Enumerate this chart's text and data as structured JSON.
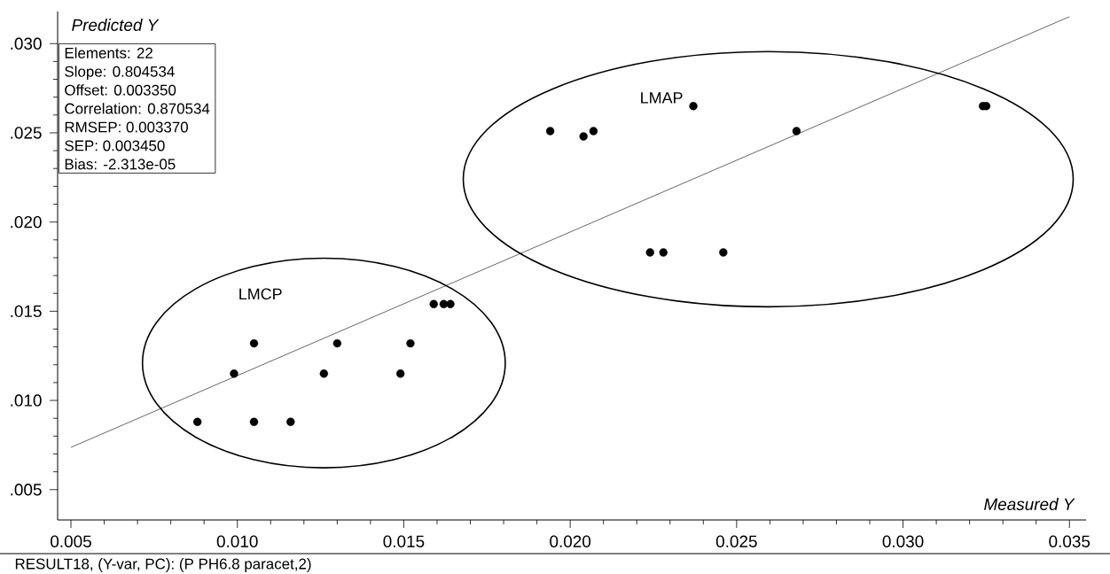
{
  "chart_data": {
    "type": "scatter",
    "xlabel": "Measured Y",
    "ylabel": "Predicted Y",
    "series": [
      {
        "name": "LMCP",
        "color": "#000000",
        "x": [
          0.0088,
          0.0105,
          0.0116,
          0.0099,
          0.0105,
          0.013,
          0.0126,
          0.0152,
          0.0149,
          0.0159,
          0.0162,
          0.0164
        ],
        "values": [
          0.0088,
          0.0088,
          0.0088,
          0.0115,
          0.0132,
          0.0132,
          0.0115,
          0.0132,
          0.0115,
          0.0154,
          0.0154,
          0.0154
        ]
      },
      {
        "name": "LMAP",
        "color": "#000000",
        "x": [
          0.0194,
          0.0207,
          0.0204,
          0.0237,
          0.0268,
          0.0324,
          0.0325,
          0.0224,
          0.0228,
          0.0246
        ],
        "values": [
          0.0251,
          0.0251,
          0.0248,
          0.0265,
          0.0251,
          0.0265,
          0.0265,
          0.0183,
          0.0183,
          0.0183
        ]
      },
      {
        "type": "line",
        "color": "#000000",
        "marker": "none",
        "x": [
          0.005,
          0.035
        ],
        "values": [
          0.00737,
          0.03151
        ]
      }
    ],
    "xlim": [
      0.0046,
      0.0355
    ],
    "ylim": [
      0.0033,
      0.0318
    ],
    "xticks": [
      0.005,
      {
        "value": 0.01,
        "label": "0.010"
      },
      0.015,
      {
        "value": 0.02,
        "label": "0.020"
      },
      0.025,
      {
        "value": 0.03,
        "label": "0.030"
      },
      0.035
    ],
    "yticks": [
      {
        "value": 0.005,
        "label": ".005"
      },
      {
        "value": 0.01,
        "label": ".010"
      },
      {
        "value": 0.015,
        "label": ".015"
      },
      {
        "value": 0.02,
        "label": ".020"
      },
      {
        "value": 0.025,
        "label": ".025"
      },
      {
        "value": 0.03,
        "label": ".030"
      }
    ],
    "grid": false,
    "annotations": [
      "Elements: 22",
      "Slope: 0.804534",
      "Offset: 0.003350",
      "Correlation: 0.870534",
      "RMSEP: 0.003370",
      "SEP: 0.003450",
      "Bias: -2.313e-05",
      "RESULT18, (Y-var, PC): (P PH6.8 paracet,2)"
    ]
  }
}
